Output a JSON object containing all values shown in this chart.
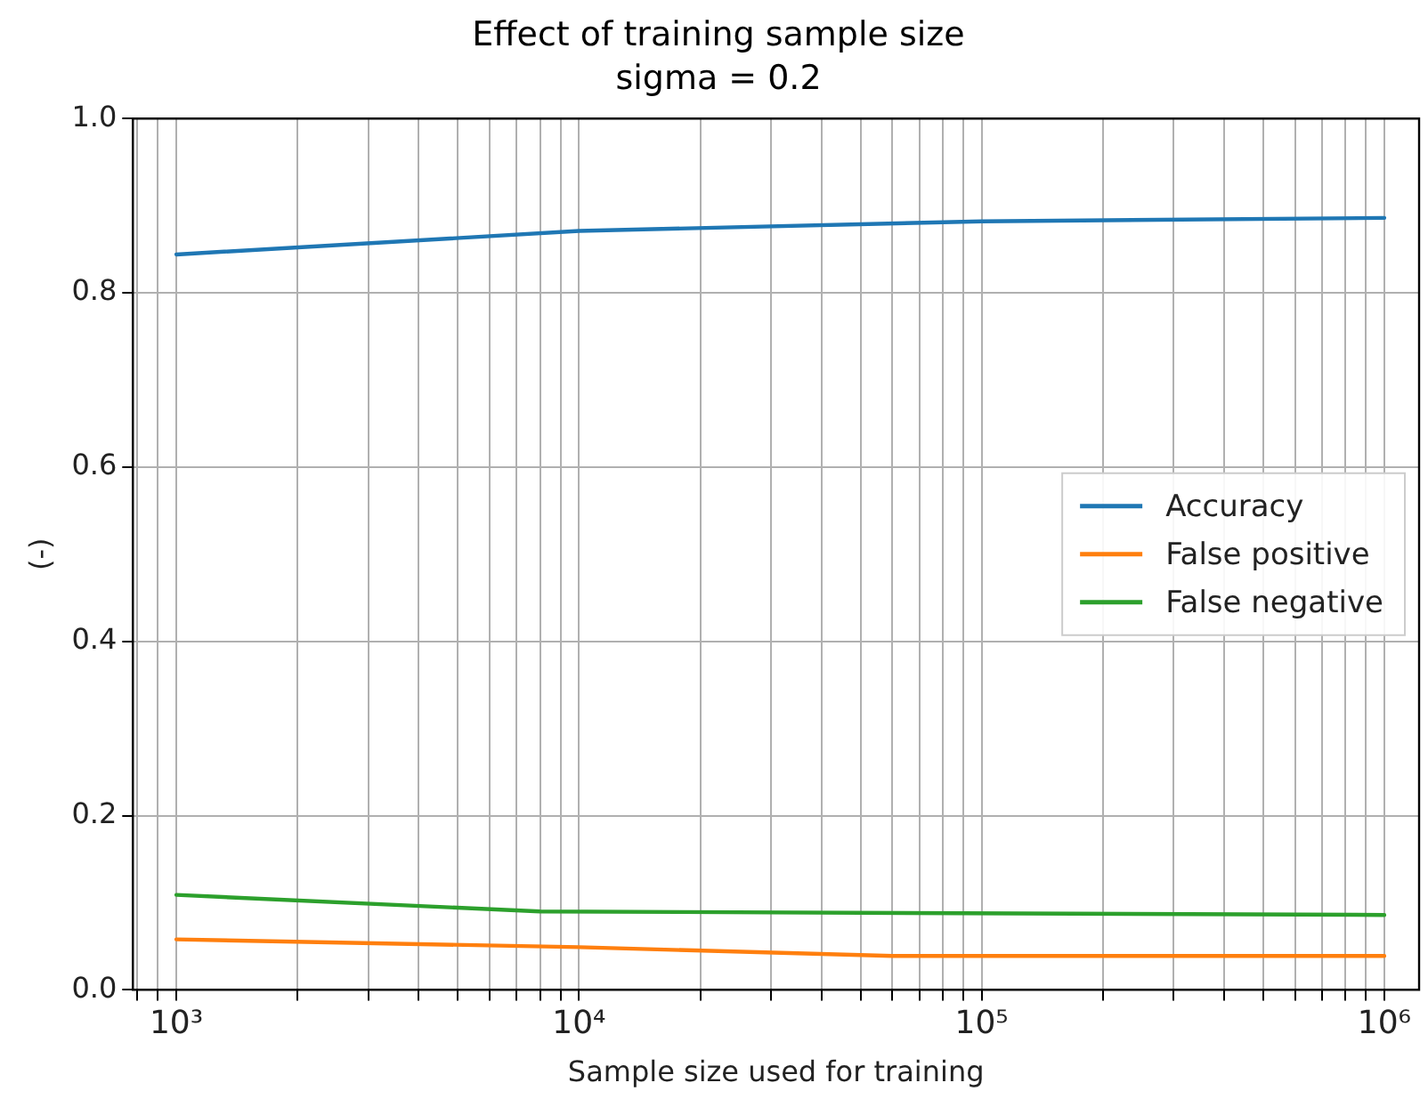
{
  "chart_data": {
    "type": "line",
    "title": "Effect of training sample size",
    "subtitle": "sigma = 0.2",
    "xlabel": "Sample size used for training",
    "ylabel": "(-)",
    "log": "x",
    "grid": true,
    "legend": "center right",
    "marker": "none",
    "line_style": "solid",
    "xlim": [
      780,
      1220000
    ],
    "ylim": [
      0,
      1
    ],
    "yticks": [
      {
        "value": 0,
        "label": "0.0"
      },
      {
        "value": 0.2,
        "label": "0.2"
      },
      {
        "value": 0.4,
        "label": "0.4"
      },
      {
        "value": 0.6,
        "label": "0.6"
      },
      {
        "value": 0.8,
        "label": "0.8"
      },
      {
        "value": 1,
        "label": "1.0"
      }
    ],
    "xticks": [
      {
        "value": 800,
        "label": null
      },
      {
        "value": 900,
        "label": null
      },
      {
        "value": 1000,
        "label": "10³"
      },
      {
        "value": 2000,
        "label": null
      },
      {
        "value": 3000,
        "label": null
      },
      {
        "value": 4000,
        "label": null
      },
      {
        "value": 5000,
        "label": null
      },
      {
        "value": 6000,
        "label": null
      },
      {
        "value": 7000,
        "label": null
      },
      {
        "value": 8000,
        "label": null
      },
      {
        "value": 9000,
        "label": null
      },
      {
        "value": 10000,
        "label": "10⁴"
      },
      {
        "value": 20000,
        "label": null
      },
      {
        "value": 30000,
        "label": null
      },
      {
        "value": 40000,
        "label": null
      },
      {
        "value": 50000,
        "label": null
      },
      {
        "value": 60000,
        "label": null
      },
      {
        "value": 70000,
        "label": null
      },
      {
        "value": 80000,
        "label": null
      },
      {
        "value": 90000,
        "label": null
      },
      {
        "value": 100000,
        "label": "10⁵"
      },
      {
        "value": 200000,
        "label": null
      },
      {
        "value": 300000,
        "label": null
      },
      {
        "value": 400000,
        "label": null
      },
      {
        "value": 500000,
        "label": null
      },
      {
        "value": 600000,
        "label": null
      },
      {
        "value": 700000,
        "label": null
      },
      {
        "value": 800000,
        "label": null
      },
      {
        "value": 900000,
        "label": null
      },
      {
        "value": 1000000,
        "label": "10⁶"
      }
    ],
    "series": [
      {
        "name": "Accuracy",
        "color": "#1f77b4",
        "x": [
          1000,
          10000,
          100000,
          1000000
        ],
        "values": [
          0.844,
          0.871,
          0.882,
          0.886
        ]
      },
      {
        "name": "False positive",
        "color": "#ff7f0e",
        "x": [
          1000,
          10000,
          60000,
          1000000
        ],
        "values": [
          0.058,
          0.049,
          0.039,
          0.039
        ]
      },
      {
        "name": "False negative",
        "color": "#2ca02c",
        "x": [
          1000,
          8000,
          1000000
        ],
        "values": [
          0.109,
          0.09,
          0.086
        ]
      }
    ]
  }
}
